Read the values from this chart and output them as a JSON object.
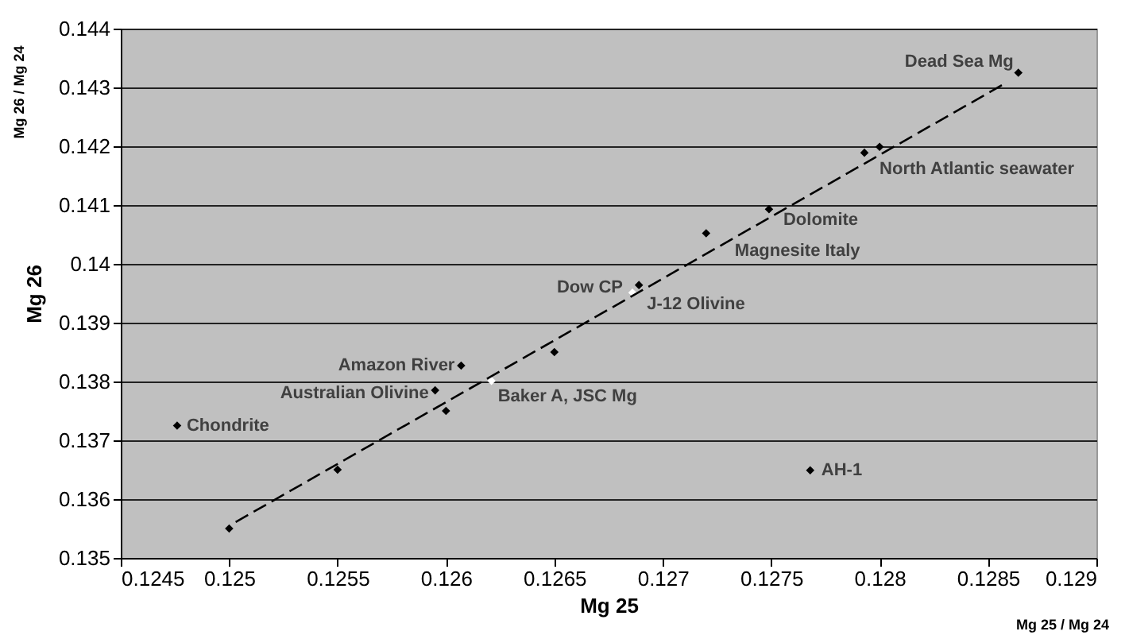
{
  "chart_data": {
    "type": "scatter",
    "xlabel": "Mg 25",
    "ylabel": "Mg 26",
    "xlim": [
      0.1245,
      0.129
    ],
    "xticks": [
      0.1245,
      0.125,
      0.1255,
      0.126,
      0.1265,
      0.127,
      0.1275,
      0.128,
      0.1285,
      0.129
    ],
    "ylim": [
      0.135,
      0.144
    ],
    "yticks": [
      0.135,
      0.136,
      0.137,
      0.138,
      0.139,
      0.14,
      0.141,
      0.142,
      0.143,
      0.144
    ],
    "grid": "y",
    "marker": "diamond",
    "series": [
      {
        "color": "#000000",
        "x": [
          0.12476,
          0.125,
          0.1255,
          0.12595,
          0.126,
          0.12607,
          0.1265,
          0.12689,
          0.1272,
          0.12749,
          0.12793,
          0.128,
          0.12864,
          0.12768
        ],
        "values": [
          0.13725,
          0.1355,
          0.1365,
          0.13785,
          0.1375,
          0.13827,
          0.1385,
          0.13964,
          0.14052,
          0.14093,
          0.14189,
          0.14199,
          0.14325,
          0.13649
        ]
      },
      {
        "color": "#ffffff",
        "x": [
          0.12621,
          0.12686
        ],
        "values": [
          0.13801,
          0.13951
        ]
      },
      {
        "type": "line",
        "color": "#000000",
        "line_style": "dashed",
        "marker": "none",
        "x": [
          0.12503,
          0.12857
        ],
        "values": [
          0.13561,
          0.14305
        ]
      }
    ],
    "annotations": [
      "Mg 26 / Mg 24",
      "Mg 25 / Mg 24",
      {
        "text": "Chondrite",
        "x": 0.12476,
        "y": 0.13725
      },
      {
        "text": "Australian Olivine",
        "x": 0.12595,
        "y": 0.13785
      },
      {
        "text": "Amazon River",
        "x": 0.12607,
        "y": 0.13827
      },
      {
        "text": "Baker A, JSC Mg",
        "x": 0.12621,
        "y": 0.13801
      },
      {
        "text": "Dow CP",
        "x": 0.12686,
        "y": 0.13951
      },
      {
        "text": "J-12 Olivine",
        "x": 0.12689,
        "y": 0.13964
      },
      {
        "text": "Magnesite Italy",
        "x": 0.1272,
        "y": 0.14052
      },
      {
        "text": "Dolomite",
        "x": 0.12749,
        "y": 0.14093
      },
      {
        "text": "North Atlantic seawater",
        "x": 0.128,
        "y": 0.14199
      },
      {
        "text": "Dead Sea Mg",
        "x": 0.12864,
        "y": 0.14325
      },
      {
        "text": "AH-1",
        "x": 0.12768,
        "y": 0.13649
      }
    ]
  }
}
